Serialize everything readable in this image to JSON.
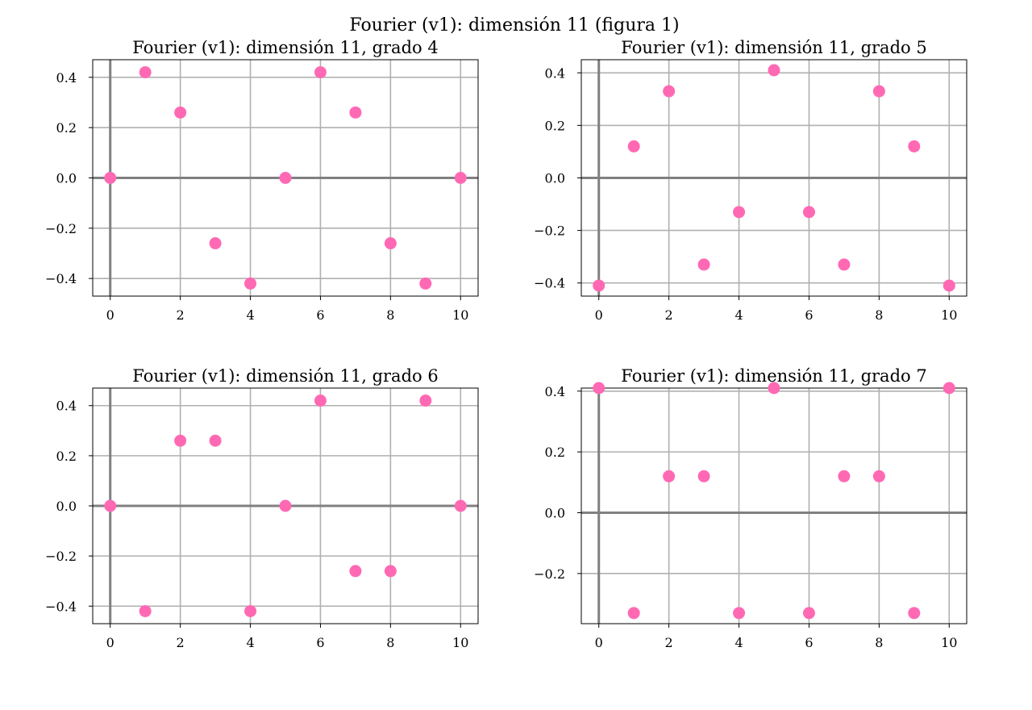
{
  "figure": {
    "suptitle": "Fourier (v1): dimensión 11 (figura 1)"
  },
  "colors": {
    "marker": "#ff69b4",
    "grid": "#b0b0b0",
    "axis_line": "#808080"
  },
  "chart_data": [
    {
      "type": "scatter",
      "title": "Fourier (v1): dimensión 11, grado 4",
      "xlabel": "",
      "ylabel": "",
      "xlim": [
        -0.5,
        10.5
      ],
      "ylim": [
        -0.47,
        0.47
      ],
      "xticks": [
        0,
        2,
        4,
        6,
        8,
        10
      ],
      "xtick_labels": [
        "0",
        "2",
        "4",
        "6",
        "8",
        "10"
      ],
      "yticks": [
        -0.4,
        -0.2,
        0.0,
        0.2,
        0.4
      ],
      "ytick_labels": [
        "−0.4",
        "−0.2",
        "0.0",
        "0.2",
        "0.4"
      ],
      "grid": true,
      "x": [
        0,
        1,
        2,
        3,
        4,
        5,
        6,
        7,
        8,
        9,
        10
      ],
      "y": [
        0.0,
        0.42,
        0.26,
        -0.26,
        -0.42,
        0.0,
        0.42,
        0.26,
        -0.26,
        -0.42,
        0.0
      ]
    },
    {
      "type": "scatter",
      "title": "Fourier (v1): dimensión 11, grado 5",
      "xlabel": "",
      "ylabel": "",
      "xlim": [
        -0.5,
        10.5
      ],
      "ylim": [
        -0.45,
        0.45
      ],
      "xticks": [
        0,
        2,
        4,
        6,
        8,
        10
      ],
      "xtick_labels": [
        "0",
        "2",
        "4",
        "6",
        "8",
        "10"
      ],
      "yticks": [
        -0.4,
        -0.2,
        0.0,
        0.2,
        0.4
      ],
      "ytick_labels": [
        "−0.4",
        "−0.2",
        "0.0",
        "0.2",
        "0.4"
      ],
      "grid": true,
      "x": [
        0,
        1,
        2,
        3,
        4,
        5,
        6,
        7,
        8,
        9,
        10
      ],
      "y": [
        -0.41,
        0.12,
        0.33,
        -0.33,
        -0.13,
        0.41,
        -0.13,
        -0.33,
        0.33,
        0.12,
        -0.41
      ]
    },
    {
      "type": "scatter",
      "title": "Fourier (v1): dimensión 11, grado 6",
      "xlabel": "",
      "ylabel": "",
      "xlim": [
        -0.5,
        10.5
      ],
      "ylim": [
        -0.47,
        0.47
      ],
      "xticks": [
        0,
        2,
        4,
        6,
        8,
        10
      ],
      "xtick_labels": [
        "0",
        "2",
        "4",
        "6",
        "8",
        "10"
      ],
      "yticks": [
        -0.4,
        -0.2,
        0.0,
        0.2,
        0.4
      ],
      "ytick_labels": [
        "−0.4",
        "−0.2",
        "0.0",
        "0.2",
        "0.4"
      ],
      "grid": true,
      "x": [
        0,
        1,
        2,
        3,
        4,
        5,
        6,
        7,
        8,
        9,
        10
      ],
      "y": [
        0.0,
        -0.42,
        0.26,
        0.26,
        -0.42,
        0.0,
        0.42,
        -0.26,
        -0.26,
        0.42,
        0.0
      ]
    },
    {
      "type": "scatter",
      "title": "Fourier (v1): dimensión 11, grado 7",
      "xlabel": "",
      "ylabel": "",
      "xlim": [
        -0.5,
        10.5
      ],
      "ylim": [
        -0.365,
        0.41
      ],
      "xticks": [
        0,
        2,
        4,
        6,
        8,
        10
      ],
      "xtick_labels": [
        "0",
        "2",
        "4",
        "6",
        "8",
        "10"
      ],
      "yticks": [
        -0.2,
        0.0,
        0.2,
        0.4
      ],
      "ytick_labels": [
        "−0.2",
        "0.0",
        "0.2",
        "0.4"
      ],
      "grid": true,
      "x": [
        0,
        1,
        2,
        3,
        4,
        5,
        6,
        7,
        8,
        9,
        10
      ],
      "y": [
        0.41,
        -0.33,
        0.12,
        0.12,
        -0.33,
        0.41,
        -0.33,
        0.12,
        0.12,
        -0.33,
        0.41
      ]
    }
  ]
}
